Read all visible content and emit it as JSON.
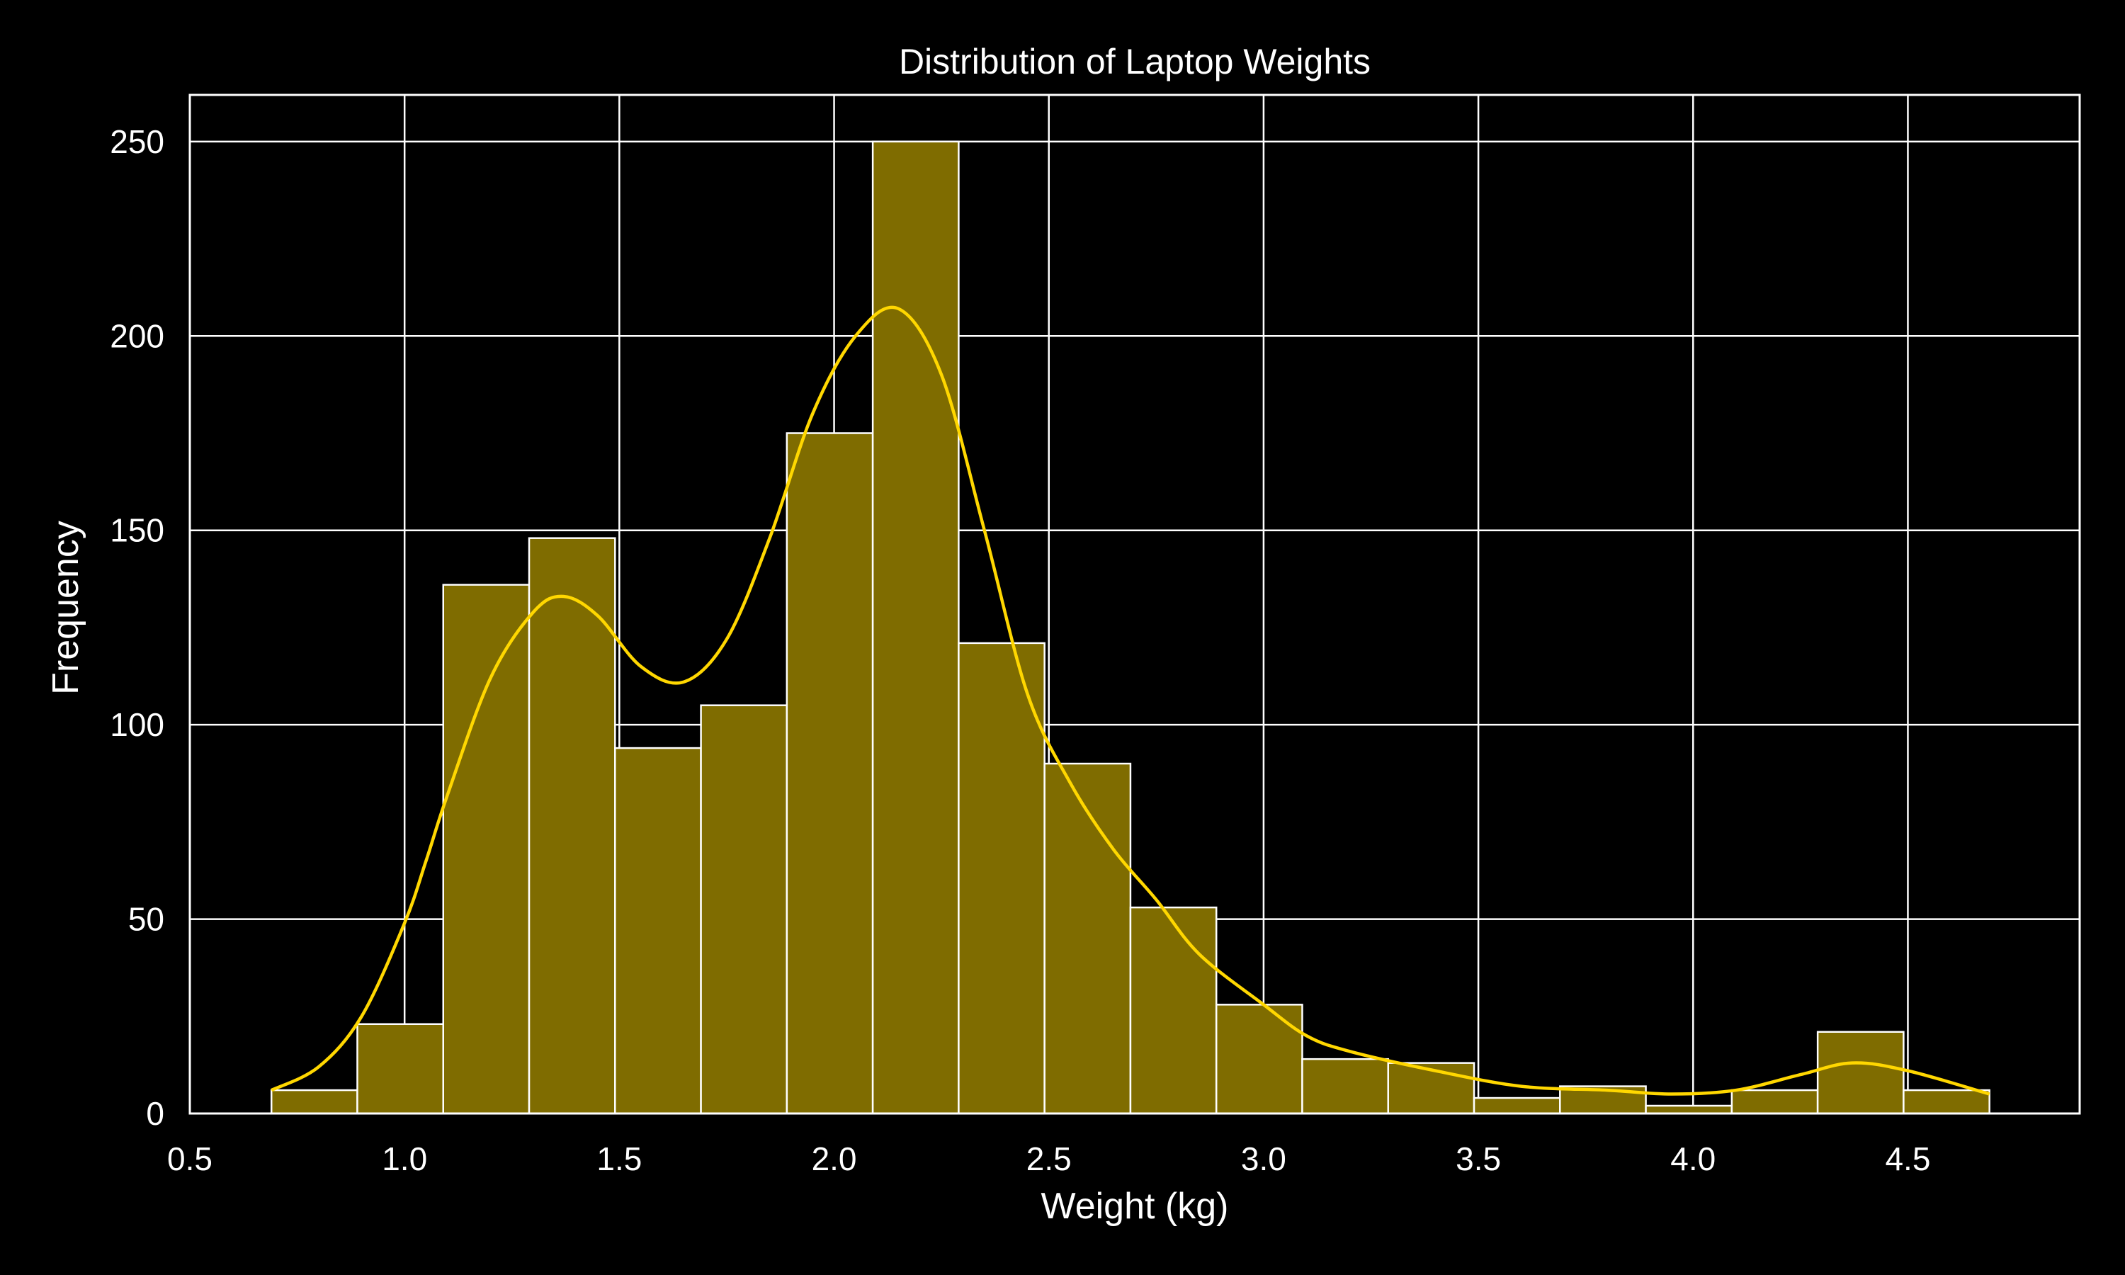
{
  "chart_data": {
    "type": "bar",
    "title": "Distribution of Laptop Weights",
    "xlabel": "Weight (kg)",
    "ylabel": "Frequency",
    "xlim": [
      0.5,
      4.9
    ],
    "ylim": [
      0,
      262
    ],
    "xticks": [
      "0.5",
      "1.0",
      "1.5",
      "2.0",
      "2.5",
      "3.0",
      "3.5",
      "4.0",
      "4.5"
    ],
    "yticks": [
      "0",
      "50",
      "100",
      "150",
      "200",
      "250"
    ],
    "grid": true,
    "bins": [
      {
        "x0": 0.69,
        "x1": 0.89,
        "count": 6
      },
      {
        "x0": 0.89,
        "x1": 1.09,
        "count": 23
      },
      {
        "x0": 1.09,
        "x1": 1.29,
        "count": 136
      },
      {
        "x0": 1.29,
        "x1": 1.49,
        "count": 148
      },
      {
        "x0": 1.49,
        "x1": 1.69,
        "count": 94
      },
      {
        "x0": 1.69,
        "x1": 1.89,
        "count": 105
      },
      {
        "x0": 1.89,
        "x1": 2.09,
        "count": 175
      },
      {
        "x0": 2.09,
        "x1": 2.29,
        "count": 250
      },
      {
        "x0": 2.29,
        "x1": 2.49,
        "count": 121
      },
      {
        "x0": 2.49,
        "x1": 2.69,
        "count": 90
      },
      {
        "x0": 2.69,
        "x1": 2.89,
        "count": 53
      },
      {
        "x0": 2.89,
        "x1": 3.09,
        "count": 28
      },
      {
        "x0": 3.09,
        "x1": 3.29,
        "count": 14
      },
      {
        "x0": 3.29,
        "x1": 3.49,
        "count": 13
      },
      {
        "x0": 3.49,
        "x1": 3.69,
        "count": 4
      },
      {
        "x0": 3.69,
        "x1": 3.89,
        "count": 7
      },
      {
        "x0": 3.89,
        "x1": 4.09,
        "count": 2
      },
      {
        "x0": 4.09,
        "x1": 4.29,
        "count": 6
      },
      {
        "x0": 4.29,
        "x1": 4.49,
        "count": 21
      },
      {
        "x0": 4.49,
        "x1": 4.69,
        "count": 6
      }
    ],
    "kde": {
      "x": [
        0.69,
        0.8,
        0.9,
        1.0,
        1.05,
        1.1,
        1.2,
        1.3,
        1.37,
        1.45,
        1.55,
        1.65,
        1.75,
        1.85,
        1.95,
        2.05,
        2.15,
        2.25,
        2.35,
        2.45,
        2.55,
        2.65,
        2.75,
        2.85,
        3.0,
        3.1,
        3.2,
        3.4,
        3.6,
        3.8,
        3.95,
        4.1,
        4.25,
        4.37,
        4.5,
        4.69
      ],
      "y": [
        6,
        12,
        25,
        49,
        65,
        82,
        112,
        129,
        133,
        128,
        115,
        111,
        122,
        148,
        180,
        200,
        207,
        190,
        150,
        108,
        85,
        68,
        55,
        41,
        28,
        20,
        16,
        11,
        7,
        6,
        5,
        6,
        10,
        13,
        11,
        5
      ]
    },
    "colors": {
      "background": "#000000",
      "bar_fill": "#7f6c00",
      "bar_edge": "#ffffff",
      "kde_line": "#ffd700",
      "grid": "#ffffff",
      "text": "#ffffff"
    }
  }
}
